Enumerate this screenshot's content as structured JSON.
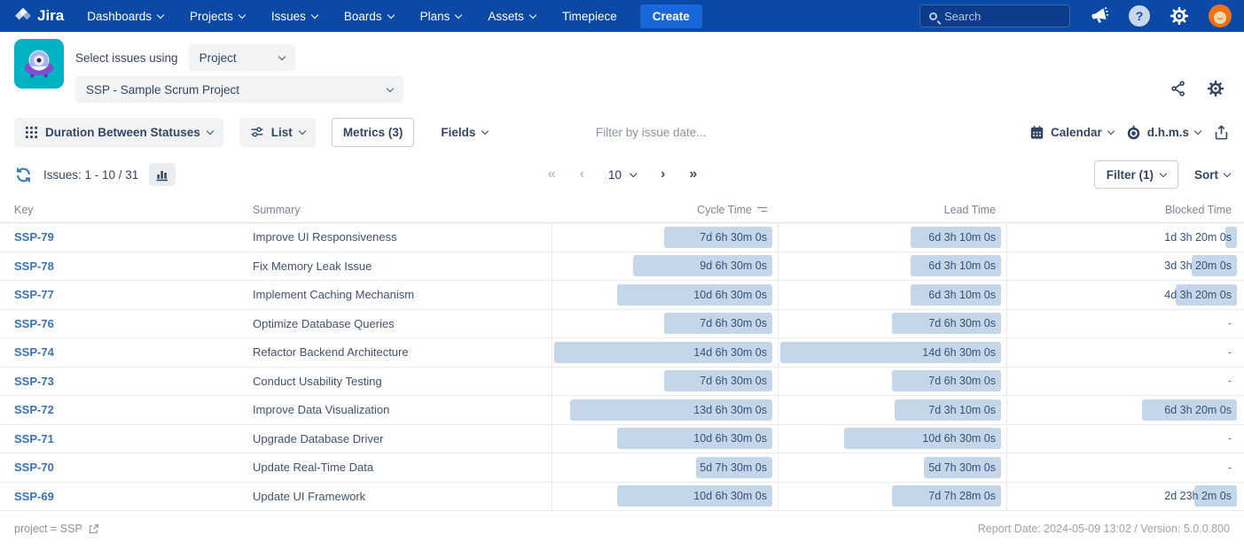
{
  "nav": {
    "brand": "Jira",
    "items": [
      {
        "label": "Dashboards",
        "chevron": true
      },
      {
        "label": "Projects",
        "chevron": true
      },
      {
        "label": "Issues",
        "chevron": true
      },
      {
        "label": "Boards",
        "chevron": true
      },
      {
        "label": "Plans",
        "chevron": true
      },
      {
        "label": "Assets",
        "chevron": true
      },
      {
        "label": "Timepiece",
        "chevron": false
      }
    ],
    "create_label": "Create",
    "search_placeholder": "Search"
  },
  "header": {
    "select_label": "Select issues using",
    "mode_value": "Project",
    "project_value": "SSP - Sample Scrum Project"
  },
  "toolbar": {
    "report_type": "Duration Between Statuses",
    "view": "List",
    "metrics": "Metrics (3)",
    "fields": "Fields",
    "date_filter": "Filter by issue date...",
    "calendar": "Calendar",
    "time_format": "d.h.m.s"
  },
  "pagination": {
    "issues_label": "Issues: 1 - 10 / 31",
    "first": "«",
    "prev": "‹",
    "page_size": "10",
    "next": "›",
    "last": "»",
    "filter_label": "Filter (1)",
    "sort_label": "Sort"
  },
  "table": {
    "columns": [
      "Key",
      "Summary",
      "Cycle Time",
      "Lead Time",
      "Blocked Time"
    ],
    "rows": [
      {
        "key": "SSP-79",
        "summary": "Improve UI Responsiveness",
        "cycle": {
          "text": "7d 6h 30m 0s",
          "pct": 51
        },
        "lead": {
          "text": "6d 3h 10m 0s",
          "pct": 43
        },
        "blocked": {
          "text": "1d 3h 20m 0s",
          "pct": 8
        }
      },
      {
        "key": "SSP-78",
        "summary": "Fix Memory Leak Issue",
        "cycle": {
          "text": "9d 6h 30m 0s",
          "pct": 65
        },
        "lead": {
          "text": "6d 3h 10m 0s",
          "pct": 43
        },
        "blocked": {
          "text": "3d 3h 20m 0s",
          "pct": 22
        }
      },
      {
        "key": "SSP-77",
        "summary": "Implement Caching Mechanism",
        "cycle": {
          "text": "10d 6h 30m 0s",
          "pct": 72
        },
        "lead": {
          "text": "6d 3h 10m 0s",
          "pct": 43
        },
        "blocked": {
          "text": "4d 3h 20m 0s",
          "pct": 29
        }
      },
      {
        "key": "SSP-76",
        "summary": "Optimize Database Queries",
        "cycle": {
          "text": "7d 6h 30m 0s",
          "pct": 51
        },
        "lead": {
          "text": "7d 6h 30m 0s",
          "pct": 51
        },
        "blocked": {
          "text": "-",
          "pct": 0
        }
      },
      {
        "key": "SSP-74",
        "summary": "Refactor Backend Architecture",
        "cycle": {
          "text": "14d 6h 30m 0s",
          "pct": 100
        },
        "lead": {
          "text": "14d 6h 30m 0s",
          "pct": 100
        },
        "blocked": {
          "text": "-",
          "pct": 0
        }
      },
      {
        "key": "SSP-73",
        "summary": "Conduct Usability Testing",
        "cycle": {
          "text": "7d 6h 30m 0s",
          "pct": 51
        },
        "lead": {
          "text": "7d 6h 30m 0s",
          "pct": 51
        },
        "blocked": {
          "text": "-",
          "pct": 0
        }
      },
      {
        "key": "SSP-72",
        "summary": "Improve Data Visualization",
        "cycle": {
          "text": "13d 6h 30m 0s",
          "pct": 93
        },
        "lead": {
          "text": "7d 3h 10m 0s",
          "pct": 50
        },
        "blocked": {
          "text": "6d 3h 20m 0s",
          "pct": 43
        }
      },
      {
        "key": "SSP-71",
        "summary": "Upgrade Database Driver",
        "cycle": {
          "text": "10d 6h 30m 0s",
          "pct": 72
        },
        "lead": {
          "text": "10d 6h 30m 0s",
          "pct": 72
        },
        "blocked": {
          "text": "-",
          "pct": 0
        }
      },
      {
        "key": "SSP-70",
        "summary": "Update Real-Time Data",
        "cycle": {
          "text": "5d 7h 30m 0s",
          "pct": 37
        },
        "lead": {
          "text": "5d 7h 30m 0s",
          "pct": 37
        },
        "blocked": {
          "text": "-",
          "pct": 0
        }
      },
      {
        "key": "SSP-69",
        "summary": "Update UI Framework",
        "cycle": {
          "text": "10d 6h 30m 0s",
          "pct": 72
        },
        "lead": {
          "text": "7d 7h 28m 0s",
          "pct": 51
        },
        "blocked": {
          "text": "2d 23h 2m 0s",
          "pct": 21
        }
      }
    ]
  },
  "footer": {
    "query": "project = SSP",
    "meta": "Report Date: 2024-05-09 13:02 / Version: 5.0.0.800"
  },
  "icons": [
    "jira-logo",
    "search-icon",
    "megaphone-icon",
    "help-icon",
    "gear-icon",
    "user-avatar",
    "ufo-app-icon",
    "share-icon",
    "grid-icon",
    "sliders-icon",
    "calendar-icon",
    "stopwatch-icon",
    "export-icon",
    "refresh-icon",
    "bar-chart-icon",
    "sort-icon",
    "external-link-icon",
    "chevron-down-icon"
  ],
  "colors": {
    "nav_blue": "#0a4aa6",
    "create_blue": "#1868db",
    "app_icon_teal": "#00b3c4",
    "link_blue": "#3b73af",
    "bar_fill": "#c4d6e8",
    "duration_text": "#33537a",
    "muted_text": "#7a869a"
  }
}
